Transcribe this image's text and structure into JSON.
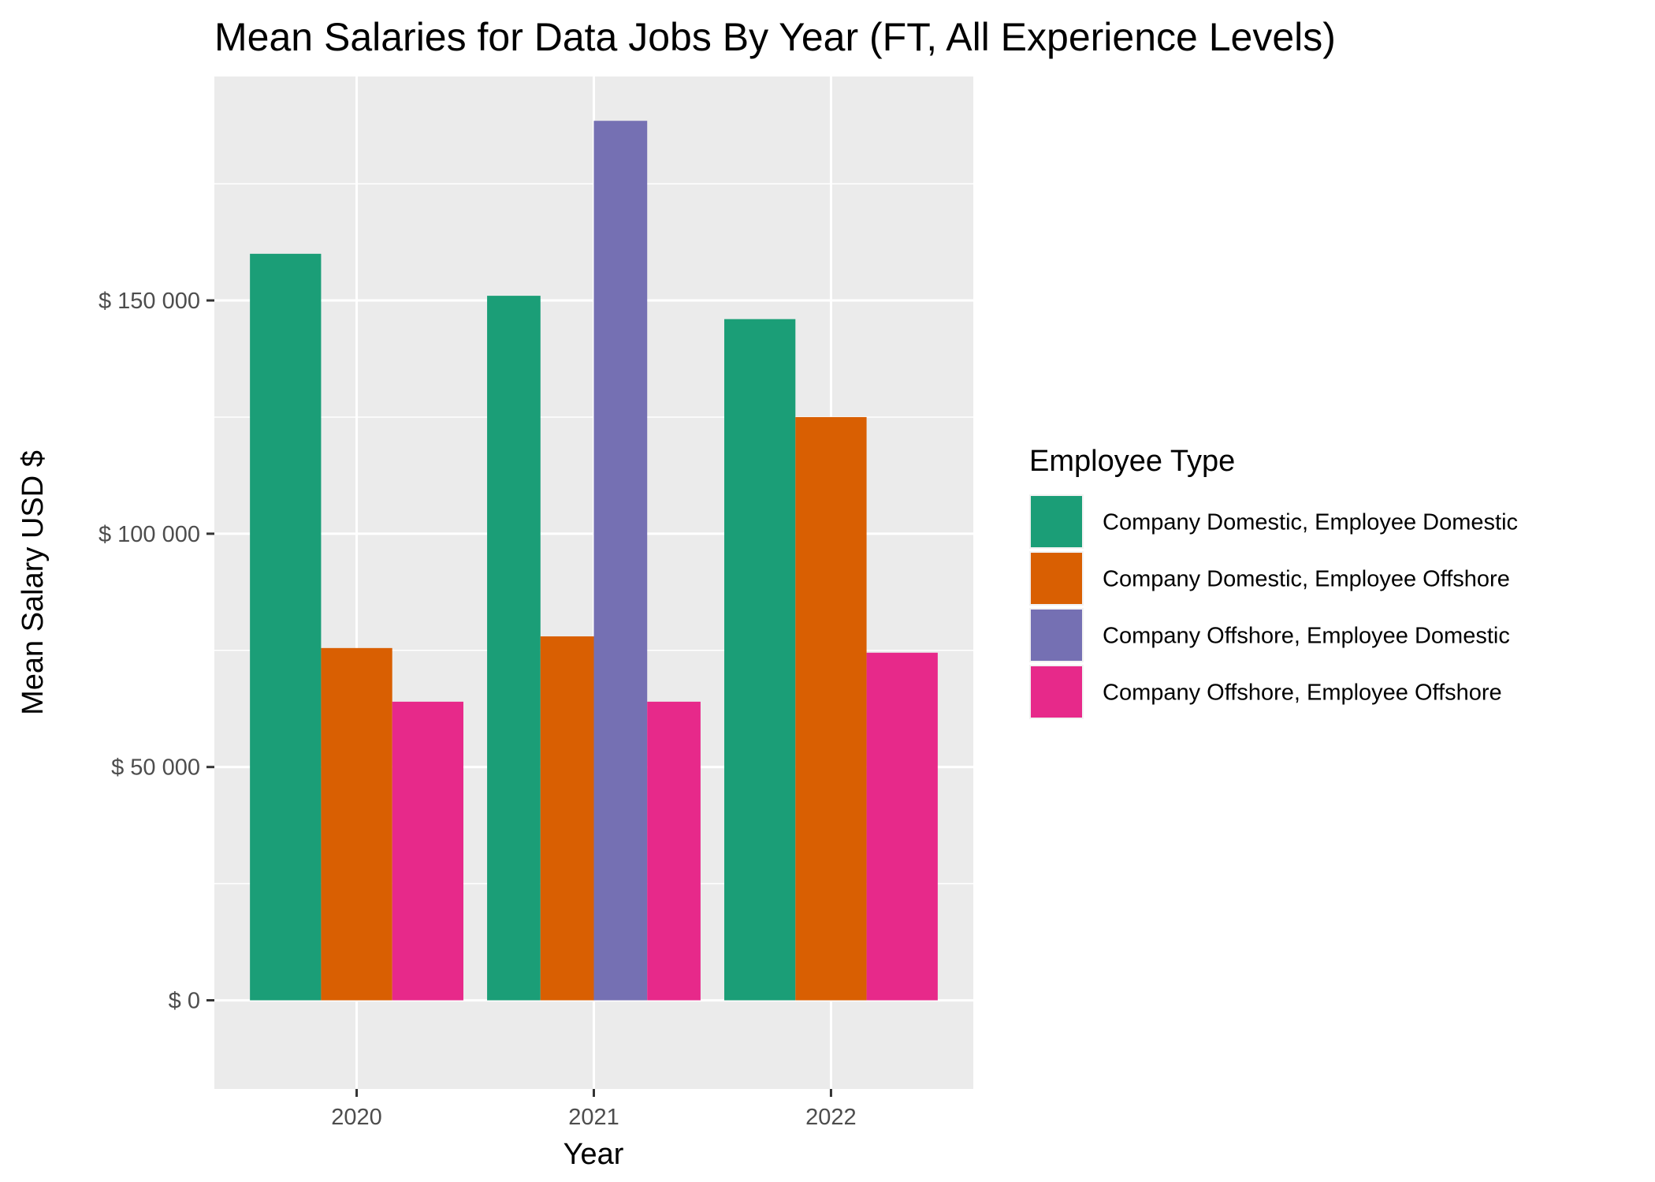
{
  "chart_data": {
    "type": "bar",
    "title": "Mean Salaries for Data Jobs By Year (FT, All Experience Levels)",
    "xlabel": "Year",
    "ylabel": "Mean Salary USD $",
    "categories": [
      "2020",
      "2021",
      "2022"
    ],
    "ylim": [
      -19000,
      198000
    ],
    "yticks": [
      0,
      50000,
      100000,
      150000
    ],
    "ytick_labels": [
      "$ 0",
      "$ 50 000",
      "$ 100 000",
      "$ 150 000"
    ],
    "grid": true,
    "legend": {
      "title": "Employee Type",
      "position": "right"
    },
    "series": [
      {
        "name": "Company Domestic, Employee Domestic",
        "color": "#1b9e77",
        "values": [
          160000,
          151000,
          146000
        ]
      },
      {
        "name": "Company Domestic, Employee Offshore",
        "color": "#d95f02",
        "values": [
          75500,
          78000,
          125000
        ]
      },
      {
        "name": "Company Offshore, Employee Domestic",
        "color": "#7570b3",
        "values": [
          null,
          188500,
          null
        ]
      },
      {
        "name": "Company Offshore, Employee Offshore",
        "color": "#e7298a",
        "values": [
          64000,
          64000,
          74500
        ]
      }
    ]
  }
}
